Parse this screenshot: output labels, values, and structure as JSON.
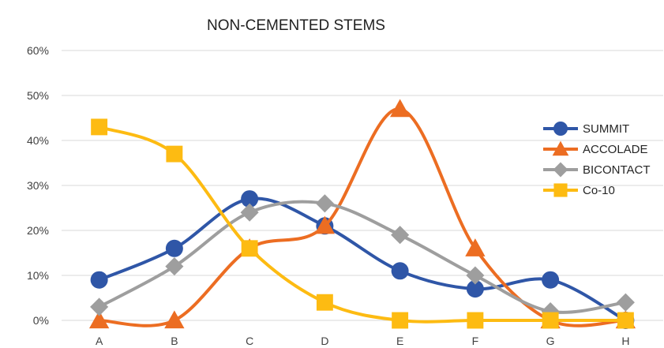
{
  "chart_data": {
    "type": "line",
    "title": "NON-CEMENTED STEMS",
    "xlabel": "",
    "ylabel": "",
    "categories": [
      "A",
      "B",
      "C",
      "D",
      "E",
      "F",
      "G",
      "H"
    ],
    "ylim": [
      0,
      60
    ],
    "yticks": [
      "0%",
      "10%",
      "20%",
      "30%",
      "40%",
      "50%",
      "60%"
    ],
    "grid": true,
    "smooth": true,
    "legend_position": "right",
    "series": [
      {
        "name": "SUMMIT",
        "values": [
          9,
          16,
          27,
          21,
          11,
          7,
          9,
          0
        ],
        "color": "#2f56a7",
        "marker": "circle"
      },
      {
        "name": "ACCOLADE",
        "values": [
          0,
          0,
          16,
          21,
          47,
          16,
          0,
          0
        ],
        "color": "#ec6d22",
        "marker": "triangle"
      },
      {
        "name": "BICONTACT",
        "values": [
          3,
          12,
          24,
          26,
          19,
          10,
          2,
          4
        ],
        "color": "#9e9e9e",
        "marker": "diamond"
      },
      {
        "name": "Co-10",
        "values": [
          43,
          37,
          16,
          4,
          0,
          0,
          0,
          0
        ],
        "color": "#fdbb12",
        "marker": "square"
      }
    ]
  }
}
